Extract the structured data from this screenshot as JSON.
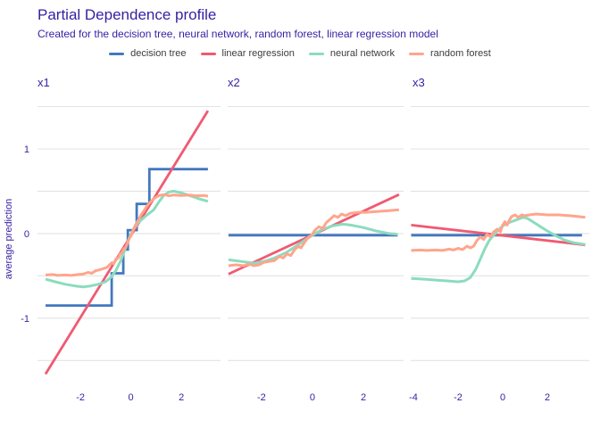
{
  "header": {
    "title": "Partial Dependence profile",
    "subtitle": "Created for the decision tree, neural network, random forest, linear regression model"
  },
  "legend": {
    "items": [
      {
        "label": "decision tree",
        "color": "#4378bf"
      },
      {
        "label": "linear regression",
        "color": "#f05a71"
      },
      {
        "label": "neural network",
        "color": "#8bdcbe"
      },
      {
        "label": "random forest",
        "color": "#ffa58c"
      }
    ]
  },
  "colors": {
    "text": "#371ea3",
    "legend_text": "#3c3c3c",
    "gridline": "#e3e3e3",
    "background": "#ffffff"
  },
  "axis": {
    "y_title": "average prediction",
    "y_ticks": [
      1,
      0,
      -1
    ],
    "y_gridlines": [
      1.5,
      1,
      0.5,
      0,
      -0.5,
      -1,
      -1.5
    ]
  },
  "chart_data": [
    {
      "type": "line",
      "facet": "x1",
      "x_ticks": [
        -2,
        0,
        2
      ],
      "xlim": [
        -3.7,
        3.55
      ],
      "ylim": [
        -1.75,
        1.6
      ],
      "grid": true,
      "legend_position": "top",
      "series": [
        {
          "name": "decision tree",
          "color": "#4378bf",
          "values": [
            [
              -3.38,
              -0.85
            ],
            [
              -0.76,
              -0.85
            ],
            [
              -0.76,
              -0.47
            ],
            [
              -0.3,
              -0.47
            ],
            [
              -0.3,
              -0.19
            ],
            [
              -0.12,
              -0.19
            ],
            [
              -0.12,
              0.04
            ],
            [
              0.23,
              0.04
            ],
            [
              0.23,
              0.35
            ],
            [
              0.73,
              0.35
            ],
            [
              0.73,
              0.76
            ],
            [
              3.05,
              0.76
            ]
          ]
        },
        {
          "name": "linear regression",
          "color": "#f05a71",
          "values": [
            [
              -3.38,
              -1.66
            ],
            [
              3.05,
              1.45
            ]
          ]
        },
        {
          "name": "neural network",
          "color": "#8bdcbe",
          "values": [
            [
              -3.38,
              -0.54
            ],
            [
              -3.0,
              -0.57
            ],
            [
              -2.6,
              -0.6
            ],
            [
              -2.2,
              -0.62
            ],
            [
              -1.9,
              -0.63
            ],
            [
              -1.6,
              -0.62
            ],
            [
              -1.3,
              -0.6
            ],
            [
              -1.0,
              -0.57
            ],
            [
              -0.8,
              -0.52
            ],
            [
              -0.6,
              -0.44
            ],
            [
              -0.4,
              -0.32
            ],
            [
              -0.2,
              -0.16
            ],
            [
              -0.05,
              -0.04
            ],
            [
              0.1,
              0.05
            ],
            [
              0.3,
              0.13
            ],
            [
              0.6,
              0.21
            ],
            [
              0.9,
              0.28
            ],
            [
              1.1,
              0.37
            ],
            [
              1.3,
              0.45
            ],
            [
              1.5,
              0.49
            ],
            [
              1.7,
              0.5
            ],
            [
              2.0,
              0.48
            ],
            [
              2.4,
              0.44
            ],
            [
              2.7,
              0.41
            ],
            [
              3.05,
              0.38
            ]
          ]
        },
        {
          "name": "random forest",
          "color": "#ffa58c",
          "values": [
            [
              -3.38,
              -0.49
            ],
            [
              -3.1,
              -0.485
            ],
            [
              -2.9,
              -0.495
            ],
            [
              -2.6,
              -0.49
            ],
            [
              -2.35,
              -0.495
            ],
            [
              -2.1,
              -0.485
            ],
            [
              -1.9,
              -0.48
            ],
            [
              -1.7,
              -0.46
            ],
            [
              -1.55,
              -0.47
            ],
            [
              -1.4,
              -0.44
            ],
            [
              -1.25,
              -0.43
            ],
            [
              -1.1,
              -0.415
            ],
            [
              -0.95,
              -0.4
            ],
            [
              -0.85,
              -0.37
            ],
            [
              -0.75,
              -0.345
            ],
            [
              -0.68,
              -0.36
            ],
            [
              -0.6,
              -0.3
            ],
            [
              -0.5,
              -0.29
            ],
            [
              -0.42,
              -0.24
            ],
            [
              -0.35,
              -0.225
            ],
            [
              -0.28,
              -0.18
            ],
            [
              -0.2,
              -0.16
            ],
            [
              -0.12,
              -0.1
            ],
            [
              -0.05,
              -0.05
            ],
            [
              0.02,
              -0.02
            ],
            [
              0.1,
              0.05
            ],
            [
              0.18,
              0.1
            ],
            [
              0.25,
              0.14
            ],
            [
              0.32,
              0.17
            ],
            [
              0.4,
              0.22
            ],
            [
              0.5,
              0.26
            ],
            [
              0.6,
              0.31
            ],
            [
              0.7,
              0.35
            ],
            [
              0.8,
              0.38
            ],
            [
              0.9,
              0.41
            ],
            [
              1.0,
              0.43
            ],
            [
              1.1,
              0.445
            ],
            [
              1.2,
              0.455
            ],
            [
              1.35,
              0.46
            ],
            [
              1.5,
              0.445
            ],
            [
              1.7,
              0.455
            ],
            [
              2.0,
              0.45
            ],
            [
              2.3,
              0.455
            ],
            [
              2.6,
              0.445
            ],
            [
              2.9,
              0.45
            ],
            [
              3.05,
              0.44
            ]
          ]
        }
      ]
    },
    {
      "type": "line",
      "facet": "x2",
      "x_ticks": [
        -2,
        0,
        2
      ],
      "xlim": [
        -3.33,
        3.58
      ],
      "ylim": [
        -1.75,
        1.6
      ],
      "grid": true,
      "legend_position": "top",
      "series": [
        {
          "name": "decision tree",
          "color": "#4378bf",
          "values": [
            [
              -3.3,
              -0.02
            ],
            [
              3.35,
              -0.02
            ]
          ]
        },
        {
          "name": "linear regression",
          "color": "#f05a71",
          "values": [
            [
              -3.3,
              -0.48
            ],
            [
              3.4,
              0.46
            ]
          ]
        },
        {
          "name": "neural network",
          "color": "#8bdcbe",
          "values": [
            [
              -3.3,
              -0.31
            ],
            [
              -2.8,
              -0.33
            ],
            [
              -2.3,
              -0.35
            ],
            [
              -1.9,
              -0.33
            ],
            [
              -1.5,
              -0.29
            ],
            [
              -1.0,
              -0.22
            ],
            [
              -0.5,
              -0.12
            ],
            [
              0.0,
              -0.02
            ],
            [
              0.4,
              0.05
            ],
            [
              0.8,
              0.09
            ],
            [
              1.2,
              0.11
            ],
            [
              1.5,
              0.1
            ],
            [
              2.0,
              0.07
            ],
            [
              2.5,
              0.03
            ],
            [
              3.0,
              0.0
            ],
            [
              3.35,
              -0.01
            ]
          ]
        },
        {
          "name": "random forest",
          "color": "#ffa58c",
          "values": [
            [
              -3.3,
              -0.38
            ],
            [
              -3.0,
              -0.37
            ],
            [
              -2.7,
              -0.38
            ],
            [
              -2.5,
              -0.36
            ],
            [
              -2.3,
              -0.38
            ],
            [
              -2.1,
              -0.37
            ],
            [
              -1.9,
              -0.34
            ],
            [
              -1.7,
              -0.33
            ],
            [
              -1.5,
              -0.32
            ],
            [
              -1.3,
              -0.27
            ],
            [
              -1.15,
              -0.29
            ],
            [
              -1.0,
              -0.24
            ],
            [
              -0.85,
              -0.26
            ],
            [
              -0.7,
              -0.19
            ],
            [
              -0.55,
              -0.15
            ],
            [
              -0.45,
              -0.17
            ],
            [
              -0.3,
              -0.1
            ],
            [
              -0.15,
              -0.04
            ],
            [
              -0.05,
              -0.03
            ],
            [
              0.1,
              0.04
            ],
            [
              0.25,
              0.08
            ],
            [
              0.4,
              0.06
            ],
            [
              0.55,
              0.13
            ],
            [
              0.7,
              0.17
            ],
            [
              0.85,
              0.21
            ],
            [
              1.0,
              0.19
            ],
            [
              1.15,
              0.23
            ],
            [
              1.3,
              0.21
            ],
            [
              1.5,
              0.24
            ],
            [
              1.8,
              0.25
            ],
            [
              2.1,
              0.25
            ],
            [
              2.5,
              0.26
            ],
            [
              3.0,
              0.27
            ],
            [
              3.4,
              0.28
            ]
          ]
        }
      ]
    },
    {
      "type": "line",
      "facet": "x3",
      "x_ticks": [
        -4,
        -2,
        0,
        2
      ],
      "xlim": [
        -4.12,
        3.88
      ],
      "ylim": [
        -1.75,
        1.6
      ],
      "grid": true,
      "legend_position": "top",
      "series": [
        {
          "name": "decision tree",
          "color": "#4378bf",
          "values": [
            [
              -4.1,
              -0.02
            ],
            [
              3.55,
              -0.02
            ]
          ]
        },
        {
          "name": "linear regression",
          "color": "#f05a71",
          "values": [
            [
              -4.1,
              0.1
            ],
            [
              3.7,
              -0.135
            ]
          ]
        },
        {
          "name": "neural network",
          "color": "#8bdcbe",
          "values": [
            [
              -4.1,
              -0.53
            ],
            [
              -3.5,
              -0.54
            ],
            [
              -3.0,
              -0.55
            ],
            [
              -2.5,
              -0.56
            ],
            [
              -2.0,
              -0.57
            ],
            [
              -1.7,
              -0.56
            ],
            [
              -1.45,
              -0.52
            ],
            [
              -1.2,
              -0.42
            ],
            [
              -1.0,
              -0.3
            ],
            [
              -0.8,
              -0.18
            ],
            [
              -0.6,
              -0.08
            ],
            [
              -0.4,
              -0.02
            ],
            [
              -0.2,
              0.04
            ],
            [
              0.0,
              0.09
            ],
            [
              0.3,
              0.13
            ],
            [
              0.6,
              0.16
            ],
            [
              0.9,
              0.19
            ],
            [
              1.1,
              0.18
            ],
            [
              1.4,
              0.13
            ],
            [
              1.7,
              0.08
            ],
            [
              2.0,
              0.03
            ],
            [
              2.4,
              -0.03
            ],
            [
              2.8,
              -0.08
            ],
            [
              3.2,
              -0.11
            ],
            [
              3.7,
              -0.13
            ]
          ]
        },
        {
          "name": "random forest",
          "color": "#ffa58c",
          "values": [
            [
              -4.1,
              -0.2
            ],
            [
              -3.7,
              -0.195
            ],
            [
              -3.4,
              -0.2
            ],
            [
              -3.0,
              -0.195
            ],
            [
              -2.7,
              -0.2
            ],
            [
              -2.4,
              -0.185
            ],
            [
              -2.2,
              -0.195
            ],
            [
              -2.0,
              -0.175
            ],
            [
              -1.8,
              -0.19
            ],
            [
              -1.6,
              -0.15
            ],
            [
              -1.45,
              -0.17
            ],
            [
              -1.3,
              -0.15
            ],
            [
              -1.15,
              -0.08
            ],
            [
              -1.0,
              -0.04
            ],
            [
              -0.85,
              -0.07
            ],
            [
              -0.7,
              -0.01
            ],
            [
              -0.55,
              -0.04
            ],
            [
              -0.4,
              0.02
            ],
            [
              -0.25,
              0.05
            ],
            [
              -0.1,
              0.02
            ],
            [
              0.0,
              0.1
            ],
            [
              0.1,
              0.14
            ],
            [
              0.2,
              0.1
            ],
            [
              0.3,
              0.16
            ],
            [
              0.4,
              0.2
            ],
            [
              0.55,
              0.22
            ],
            [
              0.7,
              0.19
            ],
            [
              0.85,
              0.22
            ],
            [
              1.0,
              0.21
            ],
            [
              1.2,
              0.22
            ],
            [
              1.5,
              0.23
            ],
            [
              2.0,
              0.22
            ],
            [
              2.5,
              0.22
            ],
            [
              3.0,
              0.21
            ],
            [
              3.4,
              0.2
            ],
            [
              3.7,
              0.19
            ]
          ]
        }
      ]
    }
  ]
}
